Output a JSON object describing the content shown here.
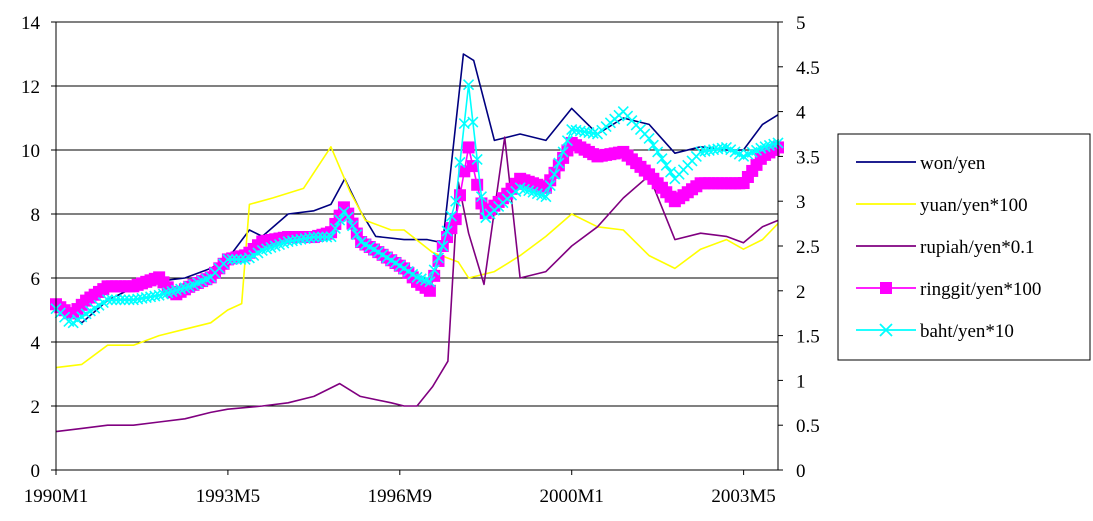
{
  "chart_data": {
    "type": "line",
    "x_tick_labels": [
      "1990M1",
      "1993M5",
      "1996M9",
      "2000M1",
      "2003M5"
    ],
    "left_axis": {
      "ylim": [
        0,
        14
      ],
      "ticks": [
        "0",
        "2",
        "4",
        "6",
        "8",
        "10",
        "12",
        "14"
      ]
    },
    "right_axis": {
      "ylim": [
        0,
        5
      ],
      "ticks": [
        "0",
        "0.5",
        "1",
        "1.5",
        "2",
        "2.5",
        "3",
        "3.5",
        "4",
        "4.5",
        "5"
      ]
    },
    "grid": "horizontal",
    "legend_position": "right",
    "x_start": "1990M1",
    "x_end": "2004M1",
    "series": [
      {
        "name": "won/yen",
        "color": "#000080",
        "marker": "none",
        "axis": "left",
        "points": [
          [
            1990.0,
            5.1
          ],
          [
            1990.5,
            4.6
          ],
          [
            1991.0,
            5.3
          ],
          [
            1991.5,
            5.7
          ],
          [
            1992.0,
            5.9
          ],
          [
            1992.5,
            6.0
          ],
          [
            1993.0,
            6.3
          ],
          [
            1993.33,
            6.6
          ],
          [
            1993.75,
            7.5
          ],
          [
            1994.0,
            7.3
          ],
          [
            1994.5,
            8.0
          ],
          [
            1995.0,
            8.1
          ],
          [
            1995.33,
            8.3
          ],
          [
            1995.6,
            9.1
          ],
          [
            1995.9,
            8.1
          ],
          [
            1996.2,
            7.3
          ],
          [
            1996.75,
            7.2
          ],
          [
            1997.2,
            7.2
          ],
          [
            1997.5,
            7.1
          ],
          [
            1997.9,
            13.0
          ],
          [
            1998.1,
            12.8
          ],
          [
            1998.5,
            10.3
          ],
          [
            1999.0,
            10.5
          ],
          [
            1999.5,
            10.3
          ],
          [
            2000.0,
            11.3
          ],
          [
            2000.5,
            10.5
          ],
          [
            2001.0,
            11.0
          ],
          [
            2001.5,
            10.8
          ],
          [
            2002.0,
            9.9
          ],
          [
            2002.5,
            10.1
          ],
          [
            2003.0,
            10.0
          ],
          [
            2003.33,
            10.0
          ],
          [
            2003.7,
            10.8
          ],
          [
            2004.0,
            11.1
          ]
        ]
      },
      {
        "name": "yuan/yen*100",
        "color": "#ffff00",
        "marker": "none",
        "axis": "left",
        "points": [
          [
            1990.0,
            3.2
          ],
          [
            1990.5,
            3.3
          ],
          [
            1991.0,
            3.9
          ],
          [
            1991.5,
            3.9
          ],
          [
            1992.0,
            4.2
          ],
          [
            1992.5,
            4.4
          ],
          [
            1993.0,
            4.6
          ],
          [
            1993.33,
            5.0
          ],
          [
            1993.6,
            5.2
          ],
          [
            1993.75,
            8.3
          ],
          [
            1994.2,
            8.5
          ],
          [
            1994.8,
            8.8
          ],
          [
            1995.33,
            10.1
          ],
          [
            1995.7,
            8.7
          ],
          [
            1996.0,
            7.8
          ],
          [
            1996.5,
            7.5
          ],
          [
            1996.75,
            7.5
          ],
          [
            1997.3,
            6.8
          ],
          [
            1997.8,
            6.5
          ],
          [
            1998.0,
            6.0
          ],
          [
            1998.5,
            6.2
          ],
          [
            1999.0,
            6.7
          ],
          [
            1999.5,
            7.3
          ],
          [
            2000.0,
            8.0
          ],
          [
            2000.5,
            7.6
          ],
          [
            2001.0,
            7.5
          ],
          [
            2001.5,
            6.7
          ],
          [
            2002.0,
            6.3
          ],
          [
            2002.5,
            6.9
          ],
          [
            2003.0,
            7.2
          ],
          [
            2003.33,
            6.9
          ],
          [
            2003.7,
            7.2
          ],
          [
            2004.0,
            7.7
          ]
        ]
      },
      {
        "name": "rupiah/yen*0.1",
        "color": "#800080",
        "marker": "none",
        "axis": "left",
        "points": [
          [
            1990.0,
            1.2
          ],
          [
            1990.5,
            1.3
          ],
          [
            1991.0,
            1.4
          ],
          [
            1991.5,
            1.4
          ],
          [
            1992.0,
            1.5
          ],
          [
            1992.5,
            1.6
          ],
          [
            1993.0,
            1.8
          ],
          [
            1993.33,
            1.9
          ],
          [
            1994.0,
            2.0
          ],
          [
            1994.5,
            2.1
          ],
          [
            1995.0,
            2.3
          ],
          [
            1995.5,
            2.7
          ],
          [
            1995.9,
            2.3
          ],
          [
            1996.5,
            2.1
          ],
          [
            1996.75,
            2.0
          ],
          [
            1997.0,
            2.0
          ],
          [
            1997.3,
            2.6
          ],
          [
            1997.6,
            3.4
          ],
          [
            1997.8,
            9.0
          ],
          [
            1998.0,
            7.4
          ],
          [
            1998.3,
            5.8
          ],
          [
            1998.7,
            10.4
          ],
          [
            1999.0,
            6.0
          ],
          [
            1999.5,
            6.2
          ],
          [
            2000.0,
            7.0
          ],
          [
            2000.5,
            7.6
          ],
          [
            2001.0,
            8.5
          ],
          [
            2001.5,
            9.2
          ],
          [
            2002.0,
            7.2
          ],
          [
            2002.5,
            7.4
          ],
          [
            2003.0,
            7.3
          ],
          [
            2003.33,
            7.1
          ],
          [
            2003.7,
            7.6
          ],
          [
            2004.0,
            7.8
          ]
        ]
      },
      {
        "name": "ringgit/yen*100",
        "color": "#ff00ff",
        "marker": "square",
        "axis": "right",
        "points": [
          [
            1990.0,
            1.85
          ],
          [
            1990.3,
            1.73
          ],
          [
            1990.6,
            1.9
          ],
          [
            1991.0,
            2.05
          ],
          [
            1991.5,
            2.05
          ],
          [
            1992.0,
            2.15
          ],
          [
            1992.3,
            1.95
          ],
          [
            1992.6,
            2.05
          ],
          [
            1993.0,
            2.15
          ],
          [
            1993.33,
            2.35
          ],
          [
            1993.7,
            2.4
          ],
          [
            1994.0,
            2.55
          ],
          [
            1994.5,
            2.6
          ],
          [
            1995.0,
            2.6
          ],
          [
            1995.33,
            2.65
          ],
          [
            1995.6,
            2.95
          ],
          [
            1995.9,
            2.55
          ],
          [
            1996.2,
            2.45
          ],
          [
            1996.75,
            2.25
          ],
          [
            1997.0,
            2.1
          ],
          [
            1997.25,
            2.0
          ],
          [
            1997.5,
            2.5
          ],
          [
            1997.75,
            2.8
          ],
          [
            1998.0,
            3.6
          ],
          [
            1998.3,
            2.85
          ],
          [
            1998.7,
            3.05
          ],
          [
            1999.0,
            3.25
          ],
          [
            1999.5,
            3.15
          ],
          [
            2000.0,
            3.65
          ],
          [
            2000.5,
            3.5
          ],
          [
            2001.0,
            3.55
          ],
          [
            2001.5,
            3.3
          ],
          [
            2002.0,
            3.0
          ],
          [
            2002.5,
            3.2
          ],
          [
            2003.0,
            3.2
          ],
          [
            2003.33,
            3.2
          ],
          [
            2003.7,
            3.5
          ],
          [
            2004.0,
            3.6
          ]
        ]
      },
      {
        "name": "baht/yen*10",
        "color": "#00ffff",
        "marker": "x",
        "axis": "right",
        "points": [
          [
            1990.0,
            1.8
          ],
          [
            1990.3,
            1.63
          ],
          [
            1990.6,
            1.75
          ],
          [
            1991.0,
            1.9
          ],
          [
            1991.5,
            1.9
          ],
          [
            1992.0,
            1.95
          ],
          [
            1992.3,
            2.0
          ],
          [
            1992.6,
            2.05
          ],
          [
            1993.0,
            2.15
          ],
          [
            1993.33,
            2.35
          ],
          [
            1993.7,
            2.35
          ],
          [
            1994.0,
            2.45
          ],
          [
            1994.5,
            2.55
          ],
          [
            1995.0,
            2.6
          ],
          [
            1995.33,
            2.6
          ],
          [
            1995.6,
            2.9
          ],
          [
            1995.9,
            2.55
          ],
          [
            1996.2,
            2.45
          ],
          [
            1996.75,
            2.25
          ],
          [
            1997.0,
            2.15
          ],
          [
            1997.25,
            2.1
          ],
          [
            1997.5,
            2.5
          ],
          [
            1997.75,
            3.0
          ],
          [
            1998.0,
            4.3
          ],
          [
            1998.3,
            2.8
          ],
          [
            1998.7,
            3.0
          ],
          [
            1999.0,
            3.15
          ],
          [
            1999.5,
            3.05
          ],
          [
            2000.0,
            3.8
          ],
          [
            2000.5,
            3.75
          ],
          [
            2001.0,
            4.0
          ],
          [
            2001.5,
            3.7
          ],
          [
            2002.0,
            3.25
          ],
          [
            2002.5,
            3.55
          ],
          [
            2003.0,
            3.6
          ],
          [
            2003.33,
            3.5
          ],
          [
            2003.7,
            3.6
          ],
          [
            2004.0,
            3.65
          ]
        ]
      }
    ]
  }
}
